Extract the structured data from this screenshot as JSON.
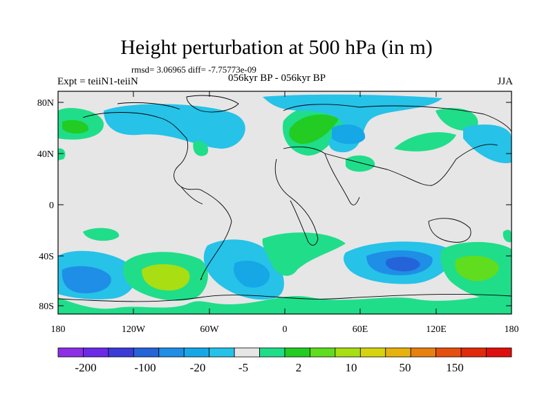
{
  "title": "Height perturbation at 500 hPa (in m)",
  "stats": "rmsd= 3.06965 diff= -7.75773e-09",
  "left_title": "Expt = teiiN1-teiiN",
  "center_title": "056kyr BP - 056kyr BP",
  "right_title": "JJA",
  "y_ticks": [
    "80N",
    "40N",
    "0",
    "40S",
    "80S"
  ],
  "x_ticks": [
    "180",
    "120W",
    "60W",
    "0",
    "60E",
    "120E",
    "180"
  ],
  "colorbar": {
    "colors": [
      "#8c2fe6",
      "#6a2ae8",
      "#3b3bd8",
      "#2563d8",
      "#1f8ee6",
      "#16a7e6",
      "#26c2e8",
      "#e6e6e6",
      "#20dd8a",
      "#22cc22",
      "#5fdd1e",
      "#a8de12",
      "#d6d40e",
      "#e6b20e",
      "#e6800e",
      "#e6500e",
      "#e02a0a",
      "#e00e0e"
    ],
    "labels": [
      "-200",
      "-100",
      "-20",
      "-5",
      "2",
      "10",
      "50",
      "150"
    ]
  }
}
